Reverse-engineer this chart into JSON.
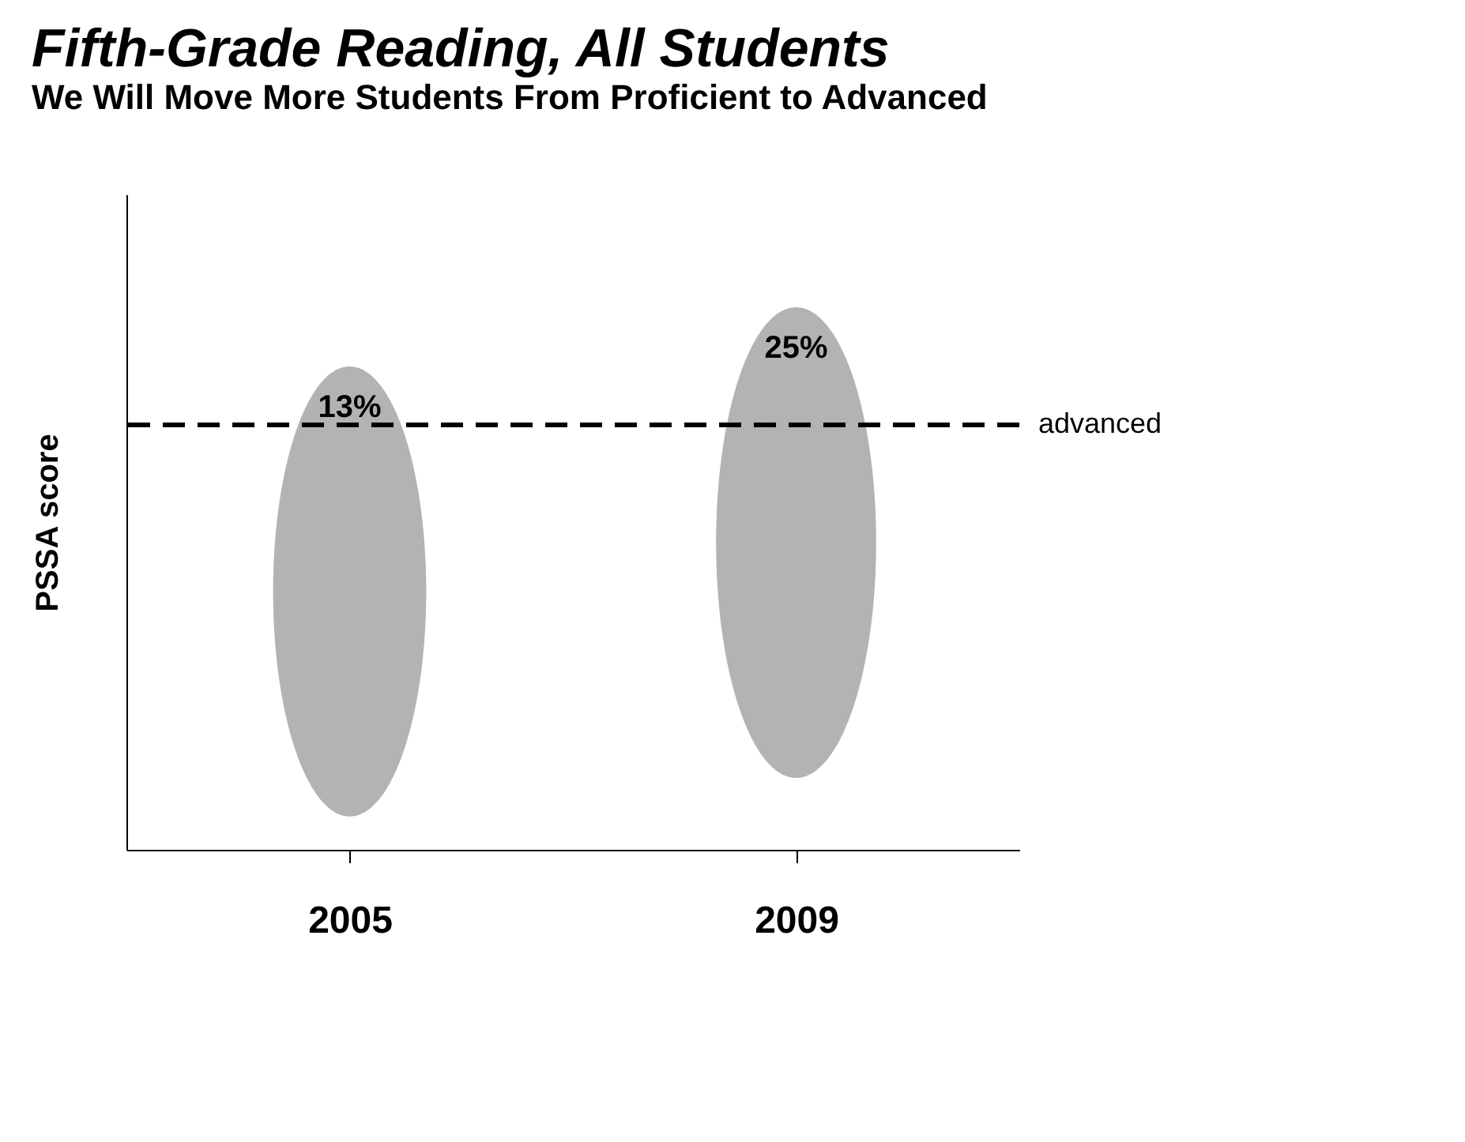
{
  "chart_data": {
    "type": "other",
    "title": "Fifth-Grade Reading, All Students",
    "subtitle": "We Will Move More Students From Proficient to Advanced",
    "ylabel": "PSSA score",
    "categories": [
      "2005",
      "2009"
    ],
    "values": [
      13,
      25
    ],
    "value_labels": [
      "13%",
      "25%"
    ],
    "color": "#9a9a9a",
    "annotations": [
      "advanced"
    ]
  }
}
